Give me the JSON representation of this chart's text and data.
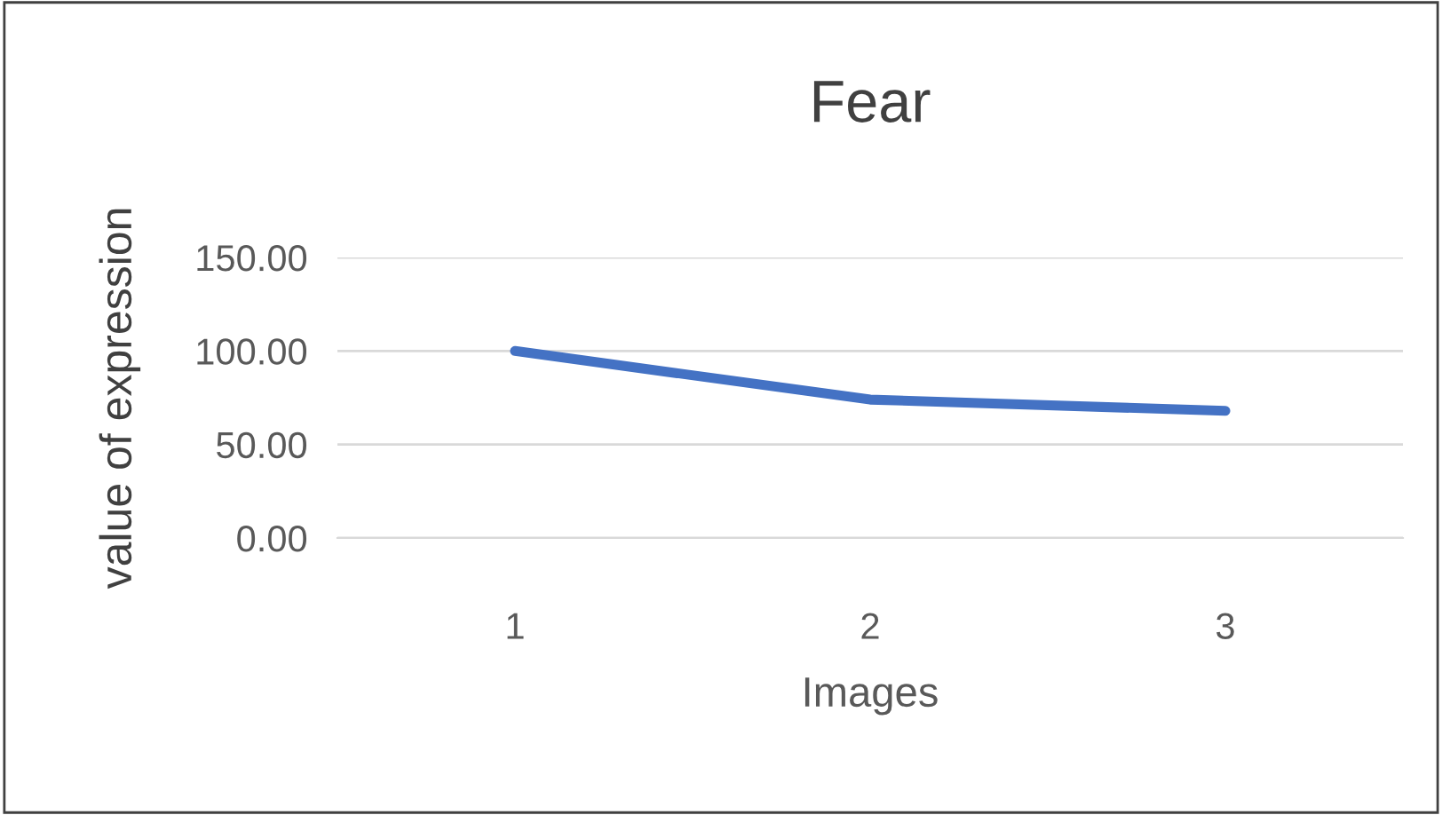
{
  "chart_data": {
    "type": "line",
    "title": "Fear",
    "xlabel": "Images",
    "ylabel": "value of expression",
    "categories": [
      "1",
      "2",
      "3"
    ],
    "series": [
      {
        "color": "#4472c4",
        "values": [
          100,
          74,
          68
        ]
      }
    ],
    "ylim": [
      0,
      150
    ],
    "yticks": [
      {
        "value": 0,
        "label": "0.00"
      },
      {
        "value": 50,
        "label": "50.00"
      },
      {
        "value": 100,
        "label": "100.00"
      },
      {
        "value": 150,
        "label": "150.00"
      }
    ],
    "grid": "y",
    "marker": "none",
    "line_style": "solid"
  }
}
